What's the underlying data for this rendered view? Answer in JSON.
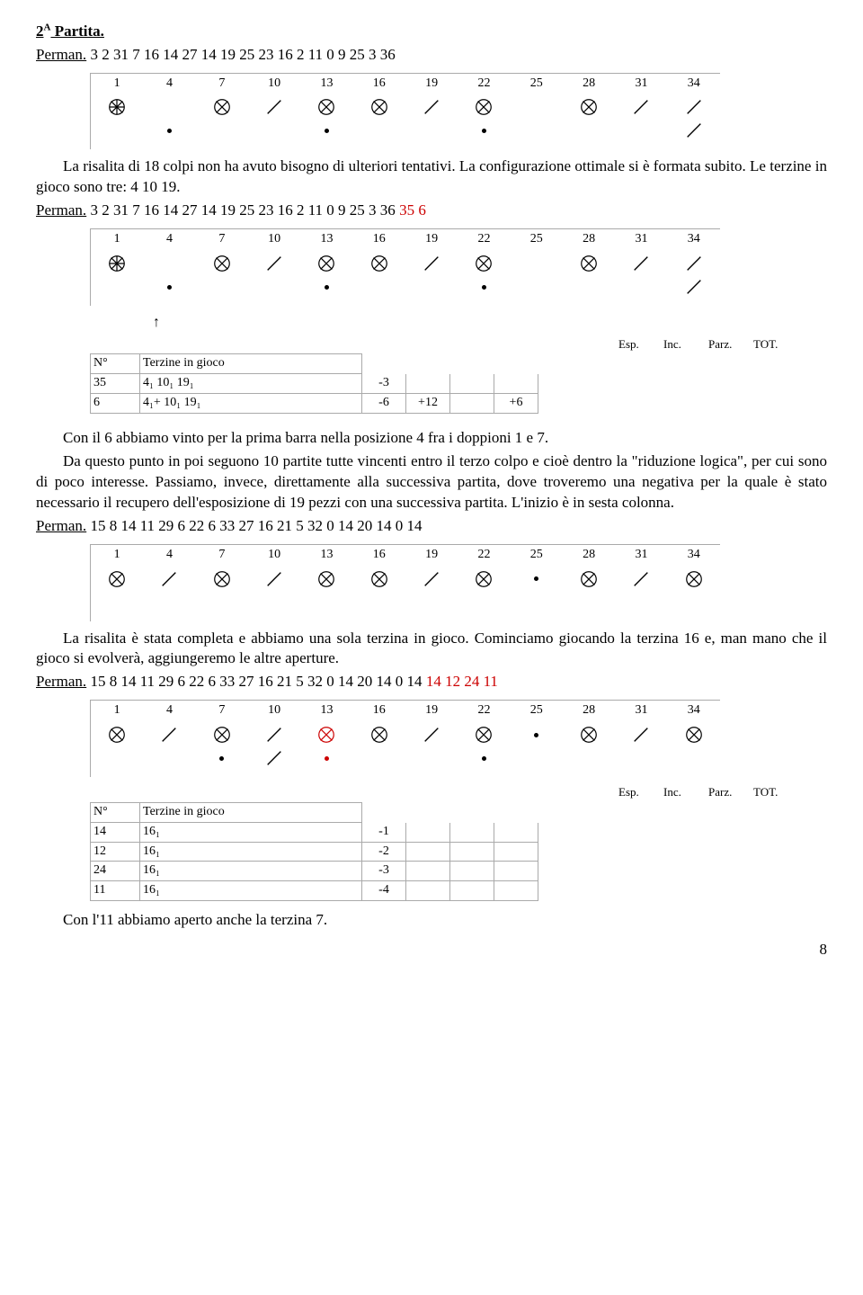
{
  "title_a": "2",
  "title_b": "A",
  "title_c": " Partita.",
  "l1a": "Perman.",
  "l1b": " 3 2 31 7 16 14 27 14 19 25 23 16 2 11 0 9 25 3 36",
  "p1": "La risalita di 18 colpi non ha avuto bisogno di ulteriori tentativi. La configurazione ottimale si è formata subito. Le terzine in gioco sono tre: 4 10 19.",
  "l2a": "Perman.",
  "l2b": " 3 2 31 7 16 14 27 14 19 25 23 16 2 11 0 9 25 3 36 ",
  "l2c": "35 6",
  "ehE": "Esp.",
  "ehI": "Inc.",
  "ehP": "Parz.",
  "ehT": "TOT.",
  "thN": "N°",
  "thT": "Terzine in gioco",
  "t1r1c1": "35",
  "t1r1c2": "4₁   10₁   19₁",
  "t1r1e": "-3",
  "t1r1i": "",
  "t1r1p": "",
  "t1r1t": "",
  "t1r2c1": "6",
  "t1r2c2": "4₁+ 10₁   19₁",
  "t1r2e": "-6",
  "t1r2i": "+12",
  "t1r2p": "",
  "t1r2t": "+6",
  "p2a": "Con il 6 abbiamo vinto per la prima barra nella posizione 4 fra i doppioni 1 e 7.",
  "p2b": "Da questo punto in poi seguono 10 partite tutte vincenti entro il terzo colpo e cioè dentro la \"riduzione logica\", per cui sono di poco interesse. Passiamo, invece, direttamente alla successiva partita, dove troveremo una negativa per la quale è stato necessario il recupero dell'esposizione di 19 pezzi con una successiva partita. L'inizio è in sesta colonna.",
  "l3a": "Perman.",
  "l3b": " 15 8 14 11 29 6 22 6 33 27 16 21 5 32 0 14 20 14 0 14",
  "p3": "La risalita è stata completa e abbiamo una sola terzina in gioco. Cominciamo giocando la terzina 16 e, man mano che il gioco si evolverà, aggiungeremo le altre aperture.",
  "l4a": "Perman.",
  "l4b": " 15 8 14 11 29 6 22 6 33 27 16 21 5 32 0 14 20 14 0 14 ",
  "l4c": "14 12 24 11",
  "t2r1c1": "14",
  "t2r1c2": "16₁",
  "t2r1e": "-1",
  "t2r2c1": "12",
  "t2r2c2": "16₁",
  "t2r2e": "-2",
  "t2r3c1": "24",
  "t2r3c2": "16₁",
  "t2r3e": "-3",
  "t2r4c1": "11",
  "t2r4c2": "16₁",
  "t2r4e": "-4",
  "p4": "Con l'11 abbiamo aperto anche la terzina 7.",
  "pn": "8",
  "axis": [
    "1",
    "4",
    "7",
    "10",
    "13",
    "16",
    "19",
    "22",
    "25",
    "28",
    "31",
    "34"
  ],
  "chart1": {
    "r1": [
      "xx",
      "",
      "x",
      "s",
      "x",
      "x",
      "s",
      "x",
      "",
      "x",
      "s",
      "s"
    ],
    "r2": [
      "",
      "d",
      "",
      "",
      "d",
      "",
      "",
      "d",
      "",
      "",
      "",
      "s"
    ]
  },
  "chart2": {
    "r1": [
      "xx",
      "",
      "x",
      "s",
      "x",
      "x",
      "s",
      "x",
      "",
      "x",
      "s",
      "s"
    ],
    "r2": [
      "",
      "d",
      "",
      "",
      "d",
      "",
      "",
      "d",
      "",
      "",
      "",
      "s"
    ]
  },
  "chart3": {
    "r1": [
      "x",
      "s",
      "x",
      "s",
      "x",
      "x",
      "s",
      "x",
      "d",
      "x",
      "s",
      "x"
    ],
    "r2": [
      "",
      "",
      "",
      "",
      "",
      "",
      "",
      "",
      "",
      "",
      "",
      ""
    ]
  },
  "chart4": {
    "r1": [
      "x",
      "s",
      "x",
      "s",
      "xr",
      "x",
      "s",
      "x",
      "d",
      "x",
      "s",
      "x"
    ],
    "r2": [
      "",
      "",
      "d",
      "s",
      "dr",
      "",
      "",
      "d",
      "",
      "",
      "",
      ""
    ]
  }
}
